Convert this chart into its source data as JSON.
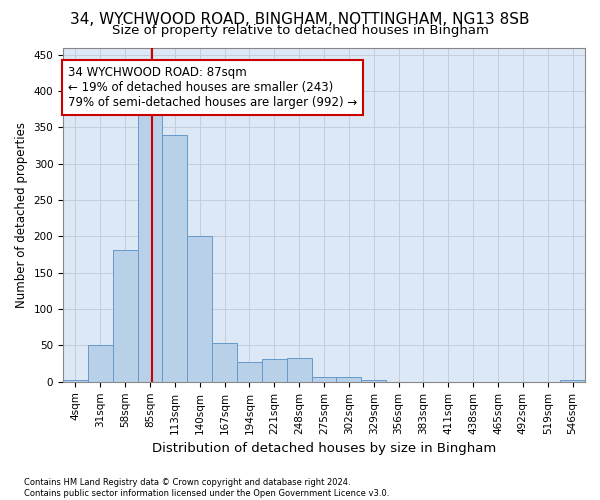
{
  "title_line1": "34, WYCHWOOD ROAD, BINGHAM, NOTTINGHAM, NG13 8SB",
  "title_line2": "Size of property relative to detached houses in Bingham",
  "xlabel": "Distribution of detached houses by size in Bingham",
  "ylabel": "Number of detached properties",
  "footnote1": "Contains HM Land Registry data © Crown copyright and database right 2024.",
  "footnote2": "Contains public sector information licensed under the Open Government Licence v3.0.",
  "bar_labels": [
    "4sqm",
    "31sqm",
    "58sqm",
    "85sqm",
    "113sqm",
    "140sqm",
    "167sqm",
    "194sqm",
    "221sqm",
    "248sqm",
    "275sqm",
    "302sqm",
    "329sqm",
    "356sqm",
    "383sqm",
    "411sqm",
    "438sqm",
    "465sqm",
    "492sqm",
    "519sqm",
    "546sqm"
  ],
  "bar_values": [
    3,
    50,
    182,
    370,
    340,
    200,
    54,
    27,
    32,
    33,
    6,
    6,
    2,
    0,
    0,
    0,
    0,
    0,
    0,
    0,
    3
  ],
  "bar_color": "#b8d0e8",
  "bar_edge_color": "#6699cc",
  "ylim": [
    0,
    460
  ],
  "yticks": [
    0,
    50,
    100,
    150,
    200,
    250,
    300,
    350,
    400,
    450
  ],
  "grid_color": "#c0c8d8",
  "bg_color": "#dce8f5",
  "annotation_line1": "34 WYCHWOOD ROAD: 87sqm",
  "annotation_line2": "← 19% of detached houses are smaller (243)",
  "annotation_line3": "79% of semi-detached houses are larger (992) →",
  "vline_color": "#cc0000",
  "annotation_box_edge_color": "#cc0000",
  "vline_x": 3.07,
  "title1_fontsize": 11,
  "title2_fontsize": 9.5,
  "xlabel_fontsize": 9.5,
  "ylabel_fontsize": 8.5,
  "annotation_fontsize": 8.5,
  "tick_fontsize": 7.5,
  "footnote_fontsize": 6.0
}
